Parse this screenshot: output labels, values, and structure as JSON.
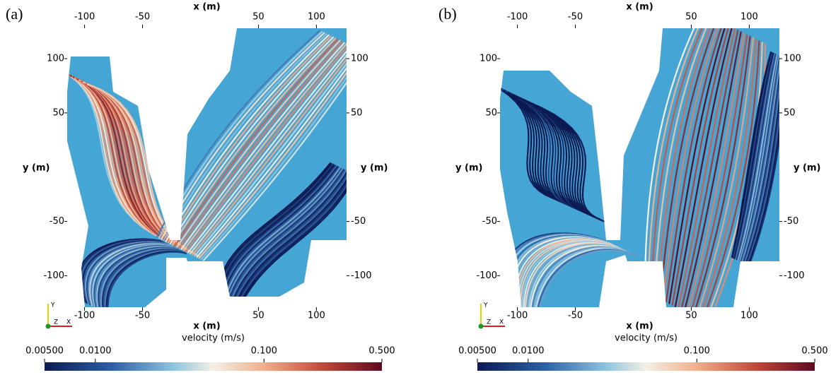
{
  "chart_data": [
    {
      "type": "streamline",
      "panel_label": "(a)",
      "xlabel": "x (m)",
      "ylabel": "y (m)",
      "xlim": [
        -115,
        126
      ],
      "ylim": [
        -129,
        128
      ],
      "xticks": [
        -100,
        -50,
        50,
        100
      ],
      "yticks": [
        -100,
        -50,
        50,
        100
      ],
      "orientation_axes": [
        "Y",
        "Z",
        "X"
      ],
      "colorbar": {
        "label": "velocity (m/s)",
        "scale": "log",
        "lim": [
          0.005,
          0.5
        ],
        "ticks": [
          {
            "value": 0.005,
            "label": "0.00500"
          },
          {
            "value": 0.01,
            "label": "0.0100"
          },
          {
            "value": 0.1,
            "label": "0.100"
          },
          {
            "value": 0.5,
            "label": "0.500"
          }
        ]
      }
    },
    {
      "type": "streamline",
      "panel_label": "(b)",
      "xlabel": "x (m)",
      "ylabel": "y (m)",
      "xlim": [
        -115,
        126
      ],
      "ylim": [
        -129,
        128
      ],
      "xticks": [
        -100,
        -50,
        50,
        100
      ],
      "yticks": [
        -100,
        -50,
        50,
        100
      ],
      "orientation_axes": [
        "Y",
        "Z",
        "X"
      ],
      "colorbar": {
        "label": "velocity (m/s)",
        "scale": "log",
        "lim": [
          0.005,
          0.5
        ],
        "ticks": [
          {
            "value": 0.005,
            "label": "0.00500"
          },
          {
            "value": 0.01,
            "label": "0.0100"
          },
          {
            "value": 0.1,
            "label": "0.100"
          },
          {
            "value": 0.5,
            "label": "0.500"
          }
        ]
      }
    }
  ]
}
